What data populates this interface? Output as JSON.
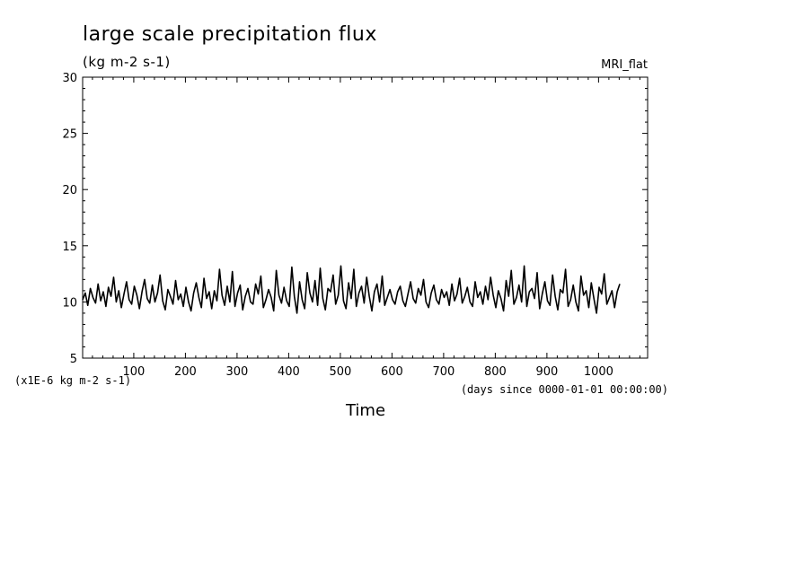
{
  "chart_data": {
    "type": "line",
    "title": "large scale precipitation flux",
    "units_label": "(kg m-2 s-1)",
    "model_label": "MRI_flat",
    "xlabel": "Time",
    "x_units_label": "(days since 0000-01-01 00:00:00)",
    "y_scale_label": "(x1E-6 kg m-2 s-1)",
    "ylim": [
      5,
      30
    ],
    "xlim": [
      1,
      1095
    ],
    "y_ticks": [
      5,
      10,
      15,
      20,
      25,
      30
    ],
    "x_ticks": [
      100,
      200,
      300,
      400,
      500,
      600,
      700,
      800,
      900,
      1000
    ],
    "grid": false,
    "line_color": "#000000",
    "series": [
      {
        "x_start": 1,
        "x_step": 5,
        "values": [
          10.2,
          10.8,
          9.7,
          11.2,
          10.4,
          9.9,
          11.6,
          10.1,
          10.9,
          9.6,
          11.3,
          10.5,
          12.2,
          10.0,
          11.0,
          9.5,
          10.7,
          11.8,
          10.2,
          9.8,
          11.4,
          10.6,
          9.4,
          10.9,
          12.0,
          10.3,
          9.9,
          11.5,
          10.0,
          10.8,
          12.4,
          10.1,
          9.3,
          11.1,
          10.5,
          9.8,
          11.9,
          10.2,
          10.7,
          9.6,
          11.3,
          10.0,
          9.2,
          10.8,
          11.7,
          10.4,
          9.5,
          12.1,
          10.3,
          10.9,
          9.4,
          11.0,
          10.1,
          12.9,
          10.6,
          9.7,
          11.4,
          10.0,
          12.7,
          9.6,
          10.8,
          11.5,
          9.3,
          10.5,
          11.2,
          10.0,
          9.8,
          11.6,
          10.7,
          12.3,
          9.5,
          10.2,
          11.1,
          10.4,
          9.2,
          12.8,
          10.6,
          9.9,
          11.3,
          10.1,
          9.6,
          13.1,
          10.5,
          9.0,
          11.8,
          10.2,
          9.4,
          12.6,
          10.8,
          10.0,
          11.9,
          9.7,
          13.0,
          10.3,
          9.3,
          11.2,
          10.9,
          12.4,
          9.8,
          10.6,
          13.2,
          10.1,
          9.4,
          11.7,
          10.3,
          12.9,
          9.6,
          10.8,
          11.4,
          9.9,
          12.2,
          10.5,
          9.2,
          10.9,
          11.6,
          10.0,
          12.3,
          9.7,
          10.4,
          11.1,
          10.2,
          9.8,
          10.9,
          11.4,
          10.1,
          9.6,
          10.7,
          11.8,
          10.3,
          9.9,
          11.2,
          10.6,
          12.0,
          10.0,
          9.5,
          10.8,
          11.5,
          10.2,
          9.8,
          11.1,
          10.4,
          10.9,
          9.7,
          11.6,
          10.1,
          10.7,
          12.1,
          9.9,
          10.5,
          11.3,
          10.0,
          9.6,
          11.8,
          10.4,
          10.9,
          9.8,
          11.4,
          10.2,
          12.2,
          10.6,
          9.5,
          11.0,
          10.3,
          9.2,
          11.9,
          10.5,
          12.8,
          9.8,
          10.4,
          11.5,
          10.0,
          13.2,
          9.6,
          10.9,
          11.2,
          10.3,
          12.6,
          9.4,
          10.7,
          11.8,
          10.1,
          9.7,
          12.4,
          10.5,
          9.3,
          11.1,
          10.8,
          12.9,
          9.6,
          10.2,
          11.5,
          10.0,
          9.2,
          12.3,
          10.6,
          11.0,
          9.5,
          11.7,
          10.3,
          9.0,
          11.3,
          10.7,
          12.5,
          9.8,
          10.4,
          11.0,
          9.5,
          10.9,
          11.6
        ]
      }
    ]
  }
}
